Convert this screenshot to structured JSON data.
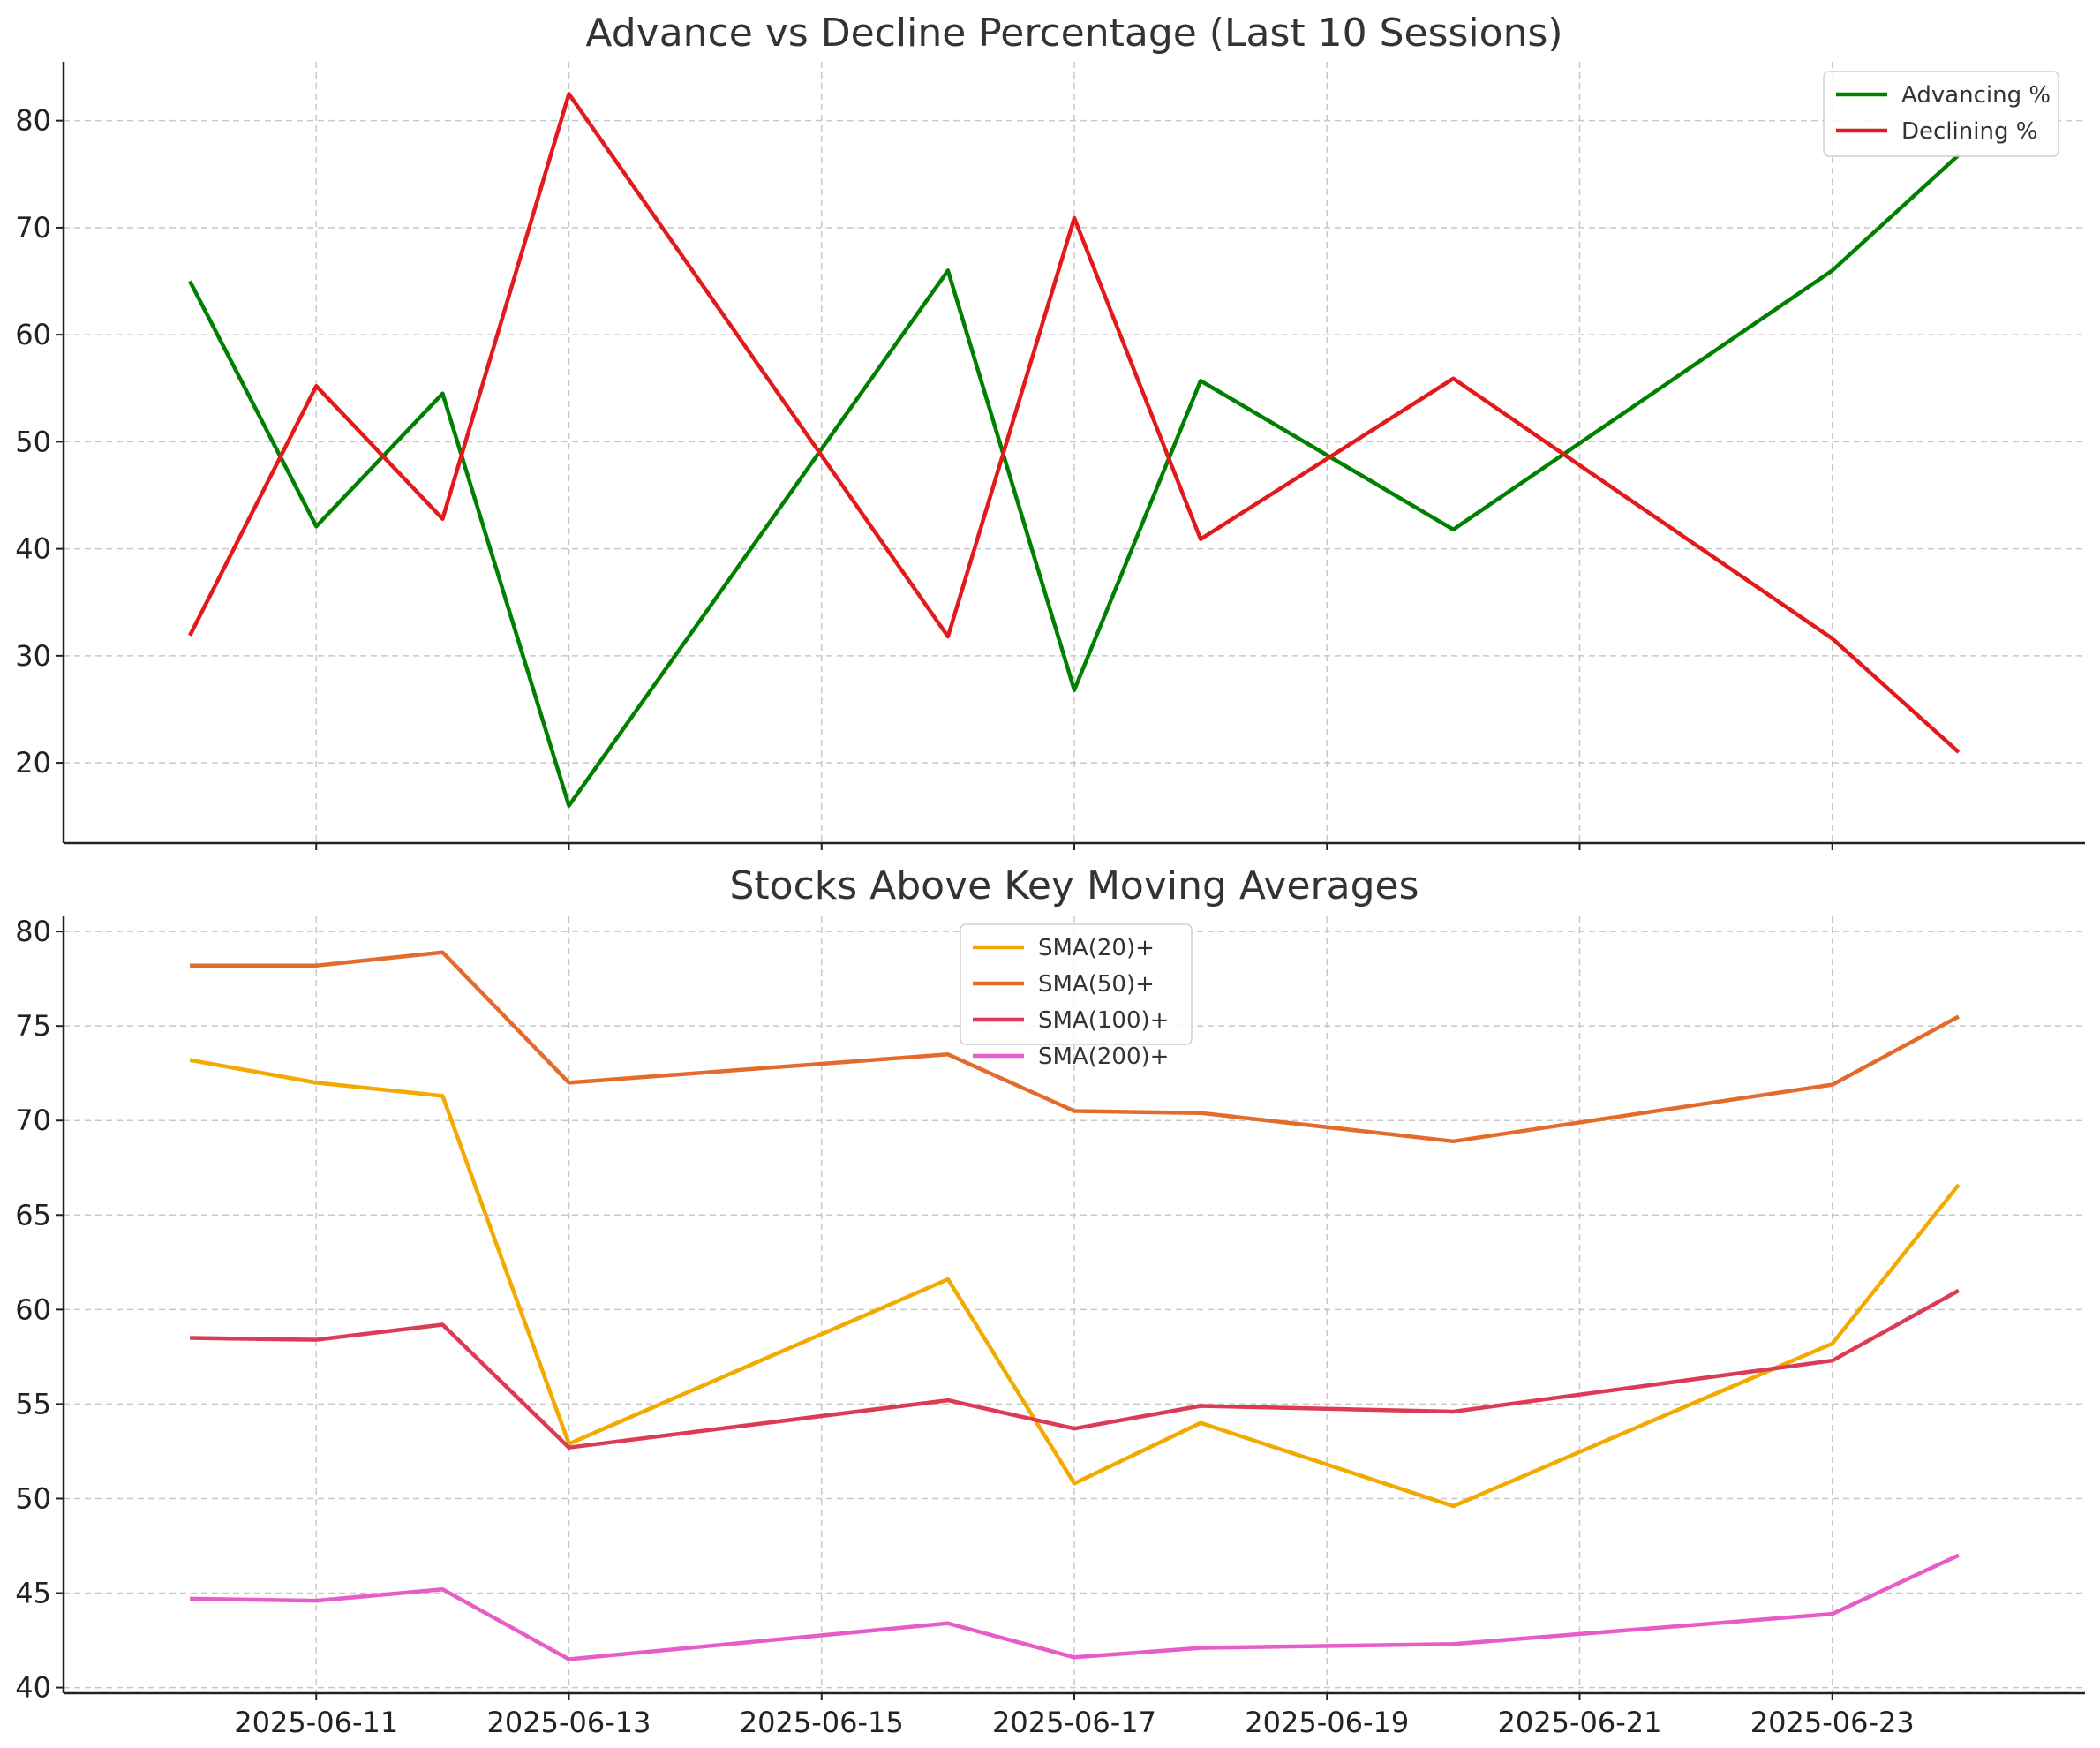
{
  "chart_data": [
    {
      "type": "line",
      "title": "Advance vs Decline Percentage (Last 10 Sessions)",
      "xlabel": "",
      "ylabel": "",
      "x": [
        "2025-06-10",
        "2025-06-11",
        "2025-06-12",
        "2025-06-13",
        "2025-06-16",
        "2025-06-17",
        "2025-06-18",
        "2025-06-20",
        "2025-06-23",
        "2025-06-24"
      ],
      "x_ticks": [
        "2025-06-11",
        "2025-06-13",
        "2025-06-15",
        "2025-06-17",
        "2025-06-19",
        "2025-06-21",
        "2025-06-23"
      ],
      "xlim": [
        "2025-06-09",
        "2025-06-25"
      ],
      "ylim": [
        12.5,
        85.5
      ],
      "y_ticks": [
        20,
        30,
        40,
        50,
        60,
        70,
        80
      ],
      "grid": true,
      "legend_position": "top-right",
      "series": [
        {
          "name": "Advancing %",
          "color": "#008000",
          "values": [
            65.0,
            42.1,
            54.5,
            16.0,
            66.0,
            26.8,
            55.7,
            41.8,
            66.0,
            76.8
          ]
        },
        {
          "name": "Declining %",
          "color": "#e31a1c",
          "values": [
            31.9,
            55.2,
            42.8,
            82.5,
            31.8,
            70.9,
            40.9,
            55.9,
            31.6,
            21.0
          ]
        }
      ]
    },
    {
      "type": "line",
      "title": "Stocks Above Key Moving Averages",
      "xlabel": "",
      "ylabel": "",
      "x": [
        "2025-06-10",
        "2025-06-11",
        "2025-06-12",
        "2025-06-13",
        "2025-06-16",
        "2025-06-17",
        "2025-06-18",
        "2025-06-20",
        "2025-06-23",
        "2025-06-24"
      ],
      "x_ticks": [
        "2025-06-11",
        "2025-06-13",
        "2025-06-15",
        "2025-06-17",
        "2025-06-19",
        "2025-06-21",
        "2025-06-23"
      ],
      "xlim": [
        "2025-06-09",
        "2025-06-25"
      ],
      "ylim": [
        39.7,
        80.8
      ],
      "y_ticks": [
        40,
        45,
        50,
        55,
        60,
        65,
        70,
        75,
        80
      ],
      "grid": true,
      "legend_position": "top-center",
      "series": [
        {
          "name": "SMA(20)+",
          "color": "#f2a900",
          "values": [
            73.2,
            72.0,
            71.3,
            52.9,
            61.6,
            50.8,
            54.0,
            49.6,
            58.2,
            66.6
          ]
        },
        {
          "name": "SMA(50)+",
          "color": "#e36b2c",
          "values": [
            78.2,
            78.2,
            78.9,
            72.0,
            73.5,
            70.5,
            70.4,
            68.9,
            71.9,
            75.5
          ]
        },
        {
          "name": "SMA(100)+",
          "color": "#dc3a55",
          "values": [
            58.5,
            58.4,
            59.2,
            52.7,
            55.2,
            53.7,
            54.9,
            54.6,
            57.3,
            61.0
          ]
        },
        {
          "name": "SMA(200)+",
          "color": "#e65dc9",
          "values": [
            44.7,
            44.6,
            45.2,
            41.5,
            43.4,
            41.6,
            42.1,
            42.3,
            43.9,
            47.0
          ]
        }
      ]
    }
  ]
}
